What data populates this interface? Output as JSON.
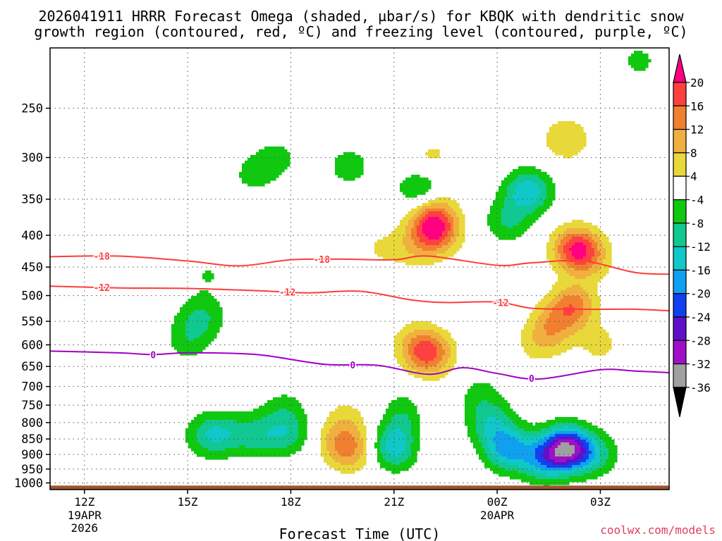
{
  "chart_data": {
    "type": "heatmap",
    "title_line1": "2026041911 HRRR Forecast Omega (shaded, µbar/s) for KBQK with dendritic snow",
    "title_line2": "growth region (contoured, red, ºC) and freezing level (contoured, purple, ºC)",
    "xlabel": "Forecast Time (UTC)",
    "ylabel": "",
    "credit": "coolwx.com/models",
    "x_range_hours": [
      -1.0,
      17.0
    ],
    "x_ticks": [
      {
        "h": 0,
        "l1": "12Z",
        "l2": "19APR",
        "l3": "2026"
      },
      {
        "h": 3,
        "l1": "15Z",
        "l2": "",
        "l3": ""
      },
      {
        "h": 6,
        "l1": "18Z",
        "l2": "",
        "l3": ""
      },
      {
        "h": 9,
        "l1": "21Z",
        "l2": "",
        "l3": ""
      },
      {
        "h": 12,
        "l1": "00Z",
        "l2": "20APR",
        "l3": ""
      },
      {
        "h": 15,
        "l1": "03Z",
        "l2": "",
        "l3": ""
      }
    ],
    "y_range_hpa": [
      200,
      1025
    ],
    "y_ticks": [
      250,
      300,
      350,
      400,
      450,
      500,
      550,
      600,
      650,
      700,
      750,
      800,
      850,
      900,
      950,
      1000
    ],
    "grid": true,
    "colorbar": {
      "levels": [
        "20",
        "16",
        "12",
        "8",
        "4",
        "-4",
        "-8",
        "-12",
        "-16",
        "-20",
        "-24",
        "-28",
        "-32",
        "-36"
      ],
      "colors": [
        "#ff0080",
        "#ff4040",
        "#f08030",
        "#f0b040",
        "#e8d83a",
        "#ffffff",
        "#10c810",
        "#10c890",
        "#10c8c8",
        "#10a0f0",
        "#1040f0",
        "#6010c8",
        "#a010c8",
        "#a0a0a0",
        "#000000"
      ]
    },
    "omega_blobs": [
      {
        "h": -0.05,
        "p": 625,
        "v": 4
      },
      {
        "h": 1.0,
        "p": 805,
        "v": -4
      },
      {
        "h": 2.95,
        "p": 280,
        "v": 4
      },
      {
        "h": 3.0,
        "p": 590,
        "v": -6
      },
      {
        "h": 3.4,
        "p": 540,
        "v": -8
      },
      {
        "h": 3.6,
        "p": 460,
        "v": -4
      },
      {
        "h": 3.6,
        "p": 840,
        "v": -9
      },
      {
        "h": 4.1,
        "p": 830,
        "v": -6
      },
      {
        "h": 5.0,
        "p": 840,
        "v": -8
      },
      {
        "h": 5.9,
        "p": 835,
        "v": -9
      },
      {
        "h": 5.8,
        "p": 760,
        "v": -5
      },
      {
        "h": 4.9,
        "p": 320,
        "v": -5
      },
      {
        "h": 5.6,
        "p": 300,
        "v": -5
      },
      {
        "h": 6.1,
        "p": 505,
        "v": 4
      },
      {
        "h": 7.7,
        "p": 310,
        "v": -6
      },
      {
        "h": 7.4,
        "p": 860,
        "v": 7
      },
      {
        "h": 7.8,
        "p": 890,
        "v": 9
      },
      {
        "h": 7.6,
        "p": 790,
        "v": 5
      },
      {
        "h": 9.0,
        "p": 880,
        "v": -14
      },
      {
        "h": 9.3,
        "p": 800,
        "v": -7
      },
      {
        "h": 9.5,
        "p": 740,
        "v": -4
      },
      {
        "h": 9.8,
        "p": 340,
        "v": -11
      },
      {
        "h": 8.6,
        "p": 420,
        "v": 4
      },
      {
        "h": 9.6,
        "p": 420,
        "v": 5
      },
      {
        "h": 10.1,
        "p": 365,
        "v": 12
      },
      {
        "h": 10.2,
        "p": 395,
        "v": 18
      },
      {
        "h": 10.1,
        "p": 300,
        "v": 5
      },
      {
        "h": 10.0,
        "p": 620,
        "v": 17
      },
      {
        "h": 9.6,
        "p": 590,
        "v": 5
      },
      {
        "h": 10.0,
        "p": 750,
        "v": 4
      },
      {
        "h": 10.0,
        "p": 850,
        "v": 3
      },
      {
        "h": 12.9,
        "p": 340,
        "v": -15
      },
      {
        "h": 12.3,
        "p": 380,
        "v": -8
      },
      {
        "h": 14.0,
        "p": 280,
        "v": 8
      },
      {
        "h": 14.7,
        "p": 210,
        "v": 4
      },
      {
        "h": 14.3,
        "p": 420,
        "v": 19
      },
      {
        "h": 14.2,
        "p": 520,
        "v": 14
      },
      {
        "h": 13.6,
        "p": 560,
        "v": 9
      },
      {
        "h": 14.7,
        "p": 440,
        "v": 6
      },
      {
        "h": 13.2,
        "p": 600,
        "v": 5
      },
      {
        "h": 15.0,
        "p": 600,
        "v": 5
      },
      {
        "h": 16.1,
        "p": 210,
        "v": -5
      },
      {
        "h": 16.0,
        "p": 300,
        "v": -4
      },
      {
        "h": 11.8,
        "p": 800,
        "v": -10
      },
      {
        "h": 12.3,
        "p": 880,
        "v": -17
      },
      {
        "h": 13.3,
        "p": 920,
        "v": -13
      },
      {
        "h": 14.0,
        "p": 880,
        "v": -29
      },
      {
        "h": 14.8,
        "p": 900,
        "v": -10
      },
      {
        "h": 11.5,
        "p": 720,
        "v": -5
      }
    ],
    "dgz_contours": [
      {
        "label": "-18",
        "label_hours": [
          0.5,
          6.9
        ],
        "points": [
          [
            -1,
            433
          ],
          [
            1,
            432
          ],
          [
            3,
            440
          ],
          [
            4.5,
            448
          ],
          [
            6,
            438
          ],
          [
            7.5,
            437
          ],
          [
            9,
            438
          ],
          [
            10,
            432
          ],
          [
            12,
            447
          ],
          [
            13,
            443
          ],
          [
            14.5,
            440
          ],
          [
            16,
            459
          ],
          [
            17,
            462
          ]
        ]
      },
      {
        "label": "-12",
        "label_hours": [
          0.5,
          5.9,
          12.1
        ],
        "points": [
          [
            -1,
            483
          ],
          [
            1,
            486
          ],
          [
            3,
            487
          ],
          [
            5,
            491
          ],
          [
            6.5,
            495
          ],
          [
            8,
            492
          ],
          [
            9.5,
            508
          ],
          [
            10.5,
            513
          ],
          [
            12,
            512
          ],
          [
            13,
            524
          ],
          [
            14.5,
            526
          ],
          [
            16,
            526
          ],
          [
            17,
            529
          ]
        ]
      }
    ],
    "freezing_level": {
      "label": "0",
      "label_hours": [
        2.0,
        7.8,
        13.0
      ],
      "points": [
        [
          -1,
          614
        ],
        [
          1,
          618
        ],
        [
          2,
          622
        ],
        [
          3,
          618
        ],
        [
          5,
          622
        ],
        [
          7,
          645
        ],
        [
          8.5,
          647
        ],
        [
          10,
          669
        ],
        [
          11,
          653
        ],
        [
          12,
          667
        ],
        [
          13.2,
          681
        ],
        [
          15,
          658
        ],
        [
          16,
          661
        ],
        [
          17,
          665
        ]
      ]
    },
    "terrain_top_hpa": 1010
  }
}
